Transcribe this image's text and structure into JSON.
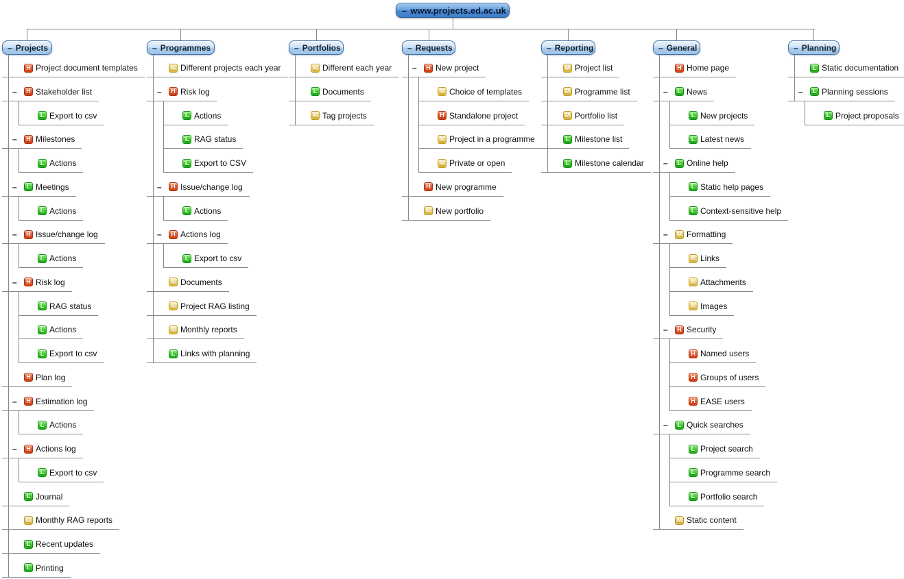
{
  "diagram": {
    "collapse_glyph": "–",
    "root": {
      "label": "www.projects.ed.ac.uk"
    },
    "colors": {
      "priority_high": "#d9430f",
      "priority_medium": "#e7c44a",
      "priority_low": "#25b022",
      "node_blue_light": "#b9d6f0",
      "node_blue_dark": "#4c8ad2",
      "connector_gray": "#878787"
    },
    "priority_legend": {
      "H": "high",
      "M": "medium",
      "L": "low"
    },
    "columns": [
      {
        "label": "Projects",
        "items": [
          {
            "level": 1,
            "priority": "H",
            "label": "Project document templates"
          },
          {
            "level": 1,
            "priority": "H",
            "label": "Stakeholder list",
            "toggle": true
          },
          {
            "level": 2,
            "priority": "L",
            "label": "Export to csv"
          },
          {
            "level": 1,
            "priority": "H",
            "label": "Milestones",
            "toggle": true
          },
          {
            "level": 2,
            "priority": "L",
            "label": "Actions"
          },
          {
            "level": 1,
            "priority": "L",
            "label": "Meetings",
            "toggle": true
          },
          {
            "level": 2,
            "priority": "L",
            "label": "Actions"
          },
          {
            "level": 1,
            "priority": "H",
            "label": "Issue/change log",
            "toggle": true
          },
          {
            "level": 2,
            "priority": "L",
            "label": "Actions"
          },
          {
            "level": 1,
            "priority": "H",
            "label": "Risk log",
            "toggle": true
          },
          {
            "level": 2,
            "priority": "L",
            "label": "RAG status"
          },
          {
            "level": 2,
            "priority": "L",
            "label": "Actions"
          },
          {
            "level": 2,
            "priority": "L",
            "label": "Export to csv"
          },
          {
            "level": 1,
            "priority": "H",
            "label": "Plan log"
          },
          {
            "level": 1,
            "priority": "H",
            "label": "Estimation log",
            "toggle": true
          },
          {
            "level": 2,
            "priority": "L",
            "label": "Actions"
          },
          {
            "level": 1,
            "priority": "H",
            "label": "Actions log",
            "toggle": true
          },
          {
            "level": 2,
            "priority": "L",
            "label": "Export to csv"
          },
          {
            "level": 1,
            "priority": "L",
            "label": "Journal"
          },
          {
            "level": 1,
            "priority": "M",
            "label": "Monthly RAG reports"
          },
          {
            "level": 1,
            "priority": "L",
            "label": "Recent updates"
          },
          {
            "level": 1,
            "priority": "L",
            "label": "Printing"
          }
        ]
      },
      {
        "label": "Programmes",
        "items": [
          {
            "level": 1,
            "priority": "M",
            "label": "Different projects each year"
          },
          {
            "level": 1,
            "priority": "H",
            "label": "Risk log",
            "toggle": true
          },
          {
            "level": 2,
            "priority": "L",
            "label": "Actions"
          },
          {
            "level": 2,
            "priority": "L",
            "label": "RAG status"
          },
          {
            "level": 2,
            "priority": "L",
            "label": "Export to CSV"
          },
          {
            "level": 1,
            "priority": "H",
            "label": "Issue/change log",
            "toggle": true
          },
          {
            "level": 2,
            "priority": "L",
            "label": "Actions"
          },
          {
            "level": 1,
            "priority": "H",
            "label": "Actions log",
            "toggle": true
          },
          {
            "level": 2,
            "priority": "L",
            "label": "Export to csv"
          },
          {
            "level": 1,
            "priority": "M",
            "label": "Documents"
          },
          {
            "level": 1,
            "priority": "M",
            "label": "Project RAG listing"
          },
          {
            "level": 1,
            "priority": "M",
            "label": "Monthly reports"
          },
          {
            "level": 1,
            "priority": "L",
            "label": "Links with planning"
          }
        ]
      },
      {
        "label": "Portfolios",
        "items": [
          {
            "level": 1,
            "priority": "M",
            "label": "Different each year"
          },
          {
            "level": 1,
            "priority": "L",
            "label": "Documents"
          },
          {
            "level": 1,
            "priority": "M",
            "label": "Tag projects"
          }
        ]
      },
      {
        "label": "Requests",
        "items": [
          {
            "level": 1,
            "priority": "H",
            "label": "New project",
            "toggle": true
          },
          {
            "level": 2,
            "priority": "M",
            "label": "Choice of templates"
          },
          {
            "level": 2,
            "priority": "H",
            "label": "Standalone project"
          },
          {
            "level": 2,
            "priority": "M",
            "label": "Project in a programme"
          },
          {
            "level": 2,
            "priority": "M",
            "label": "Private or open"
          },
          {
            "level": 1,
            "priority": "H",
            "label": "New programme"
          },
          {
            "level": 1,
            "priority": "M",
            "label": "New portfolio"
          }
        ]
      },
      {
        "label": "Reporting",
        "items": [
          {
            "level": 1,
            "priority": "M",
            "label": "Project list"
          },
          {
            "level": 1,
            "priority": "M",
            "label": "Programme list"
          },
          {
            "level": 1,
            "priority": "M",
            "label": "Portfolio list"
          },
          {
            "level": 1,
            "priority": "L",
            "label": "Milestone list"
          },
          {
            "level": 1,
            "priority": "L",
            "label": "Milestone calendar"
          }
        ]
      },
      {
        "label": "General",
        "items": [
          {
            "level": 1,
            "priority": "H",
            "label": "Home page"
          },
          {
            "level": 1,
            "priority": "L",
            "label": "News",
            "toggle": true
          },
          {
            "level": 2,
            "priority": "L",
            "label": "New projects"
          },
          {
            "level": 2,
            "priority": "L",
            "label": "Latest news"
          },
          {
            "level": 1,
            "priority": "L",
            "label": "Online help",
            "toggle": true
          },
          {
            "level": 2,
            "priority": "L",
            "label": "Static help pages"
          },
          {
            "level": 2,
            "priority": "L",
            "label": "Context-sensitive help"
          },
          {
            "level": 1,
            "priority": "M",
            "label": "Formatting",
            "toggle": true
          },
          {
            "level": 2,
            "priority": "M",
            "label": "Links"
          },
          {
            "level": 2,
            "priority": "M",
            "label": "Attachments"
          },
          {
            "level": 2,
            "priority": "M",
            "label": "Images"
          },
          {
            "level": 1,
            "priority": "H",
            "label": "Security",
            "toggle": true
          },
          {
            "level": 2,
            "priority": "H",
            "label": "Named users"
          },
          {
            "level": 2,
            "priority": "H",
            "label": "Groups of users"
          },
          {
            "level": 2,
            "priority": "H",
            "label": "EASE users"
          },
          {
            "level": 1,
            "priority": "L",
            "label": "Quick searches",
            "toggle": true
          },
          {
            "level": 2,
            "priority": "L",
            "label": "Project search"
          },
          {
            "level": 2,
            "priority": "L",
            "label": "Programme search"
          },
          {
            "level": 2,
            "priority": "L",
            "label": "Portfolio search"
          },
          {
            "level": 1,
            "priority": "M",
            "label": "Static content"
          }
        ]
      },
      {
        "label": "Planning",
        "items": [
          {
            "level": 1,
            "priority": "L",
            "label": "Static documentation"
          },
          {
            "level": 1,
            "priority": "L",
            "label": "Planning sessions",
            "toggle": true
          },
          {
            "level": 2,
            "priority": "L",
            "label": "Project proposals"
          }
        ]
      }
    ]
  }
}
